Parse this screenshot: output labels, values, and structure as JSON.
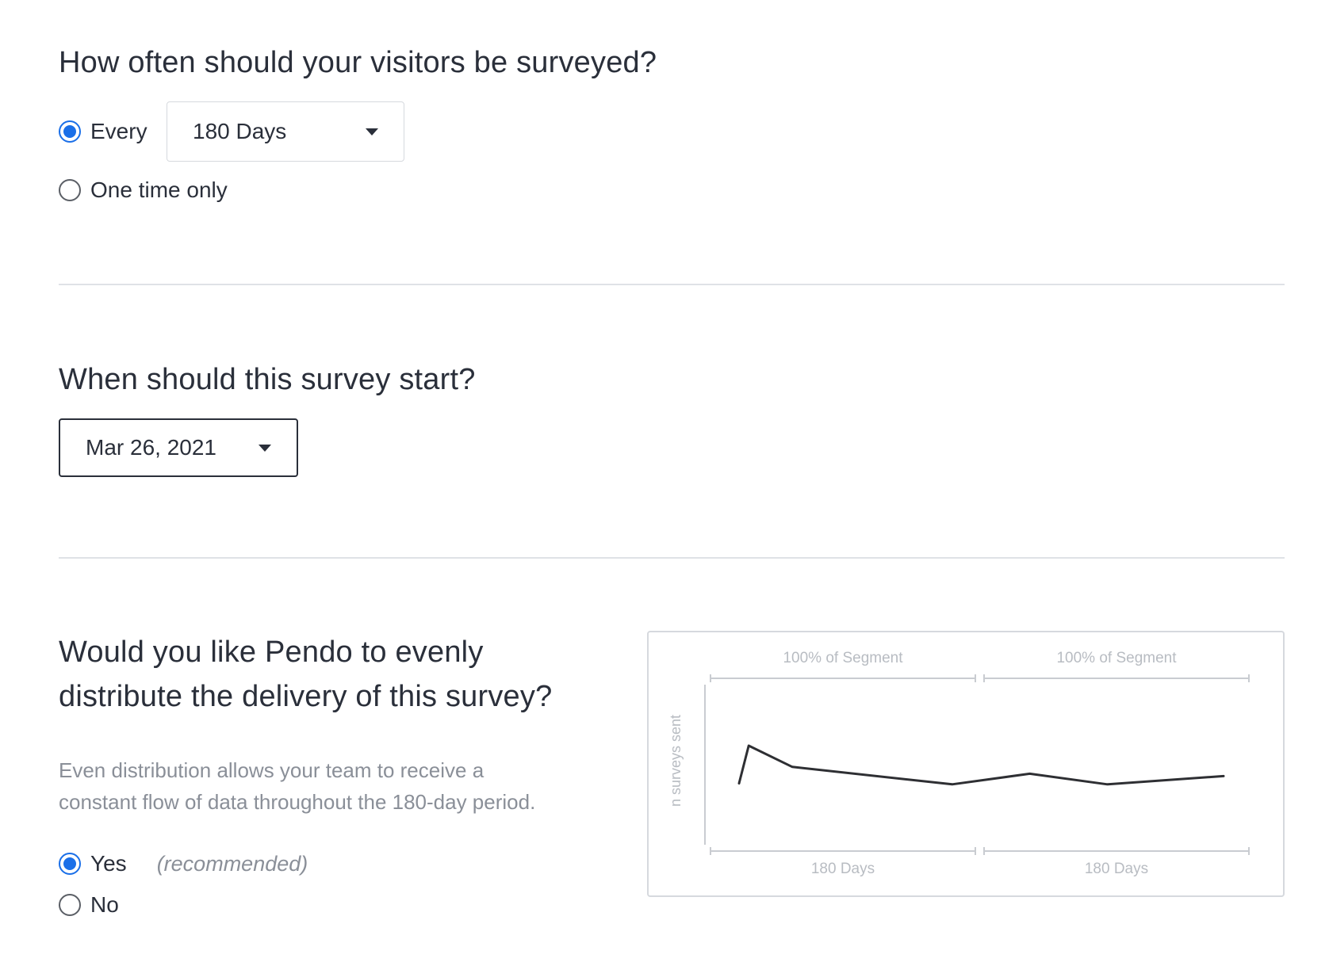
{
  "frequency": {
    "title": "How often should your visitors be surveyed?",
    "every_label": "Every",
    "every_selected": true,
    "interval_value": "180 Days",
    "one_time_label": "One time only",
    "one_time_selected": false
  },
  "start": {
    "title": "When should this survey start?",
    "date_value": "Mar 26, 2021"
  },
  "distribution": {
    "title_line1": "Would you like Pendo to evenly",
    "title_line2": "distribute the delivery of this survey?",
    "description_line1": "Even distribution allows your team to receive a",
    "description_line2": "constant flow of data throughout the 180-day period.",
    "yes_label": "Yes",
    "yes_hint": "(recommended)",
    "yes_selected": true,
    "no_label": "No",
    "no_selected": false
  },
  "chart_data": {
    "type": "line",
    "ylabel": "n surveys sent",
    "top_labels": [
      "100% of Segment",
      "100% of Segment"
    ],
    "bottom_labels": [
      "180 Days",
      "180 Days"
    ],
    "series": [
      {
        "points": [
          [
            0.0,
            0.22
          ],
          [
            0.02,
            1.0
          ],
          [
            0.11,
            0.56
          ],
          [
            0.44,
            0.2
          ],
          [
            0.6,
            0.42
          ],
          [
            0.76,
            0.2
          ],
          [
            1.0,
            0.37
          ]
        ]
      }
    ],
    "grid": false
  },
  "colors": {
    "accent": "#1a6fe8",
    "text": "#2a2f3a",
    "muted": "#8a8f98",
    "divider": "#dfe2e6",
    "chart_line": "#2e2f33",
    "chart_axis": "#c9ccd1",
    "chart_text": "#b8bcc2"
  }
}
